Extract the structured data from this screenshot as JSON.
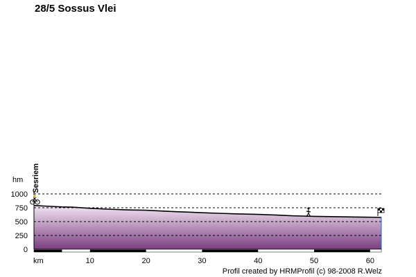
{
  "title": "28/5 Sossus Vlei",
  "credit": "Profil created by HRMProfil (c) 98-2008 R.Welz",
  "chart_data": {
    "type": "area",
    "title": "28/5 Sossus Vlei",
    "xlabel": "km",
    "ylabel": "hm",
    "xlim": [
      0,
      62
    ],
    "ylim": [
      0,
      1000
    ],
    "x_ticks": [
      10,
      20,
      30,
      40,
      50,
      60
    ],
    "y_ticks": [
      0,
      250,
      500,
      750,
      1000
    ],
    "x": [
      0,
      1,
      3,
      5,
      7,
      10,
      13,
      17,
      20,
      23,
      25,
      28,
      30,
      33,
      36,
      40,
      43,
      46,
      48,
      50,
      53,
      56,
      59,
      61,
      62
    ],
    "y": [
      790,
      785,
      775,
      765,
      760,
      740,
      725,
      710,
      705,
      690,
      680,
      670,
      660,
      650,
      640,
      630,
      620,
      605,
      600,
      595,
      590,
      585,
      580,
      578,
      575
    ],
    "waypoints": [
      {
        "name": "Sesriem",
        "km": 0,
        "icon": "bicycle-icon"
      },
      {
        "name": "",
        "km": 49,
        "icon": "hiker-icon"
      },
      {
        "name": "",
        "km": 62,
        "icon": "finish-flag-icon"
      }
    ],
    "gridlines": "dashed-horizontal",
    "fill_colors": {
      "top": "#f3e6f3",
      "bottom": "#7a3d80"
    }
  }
}
